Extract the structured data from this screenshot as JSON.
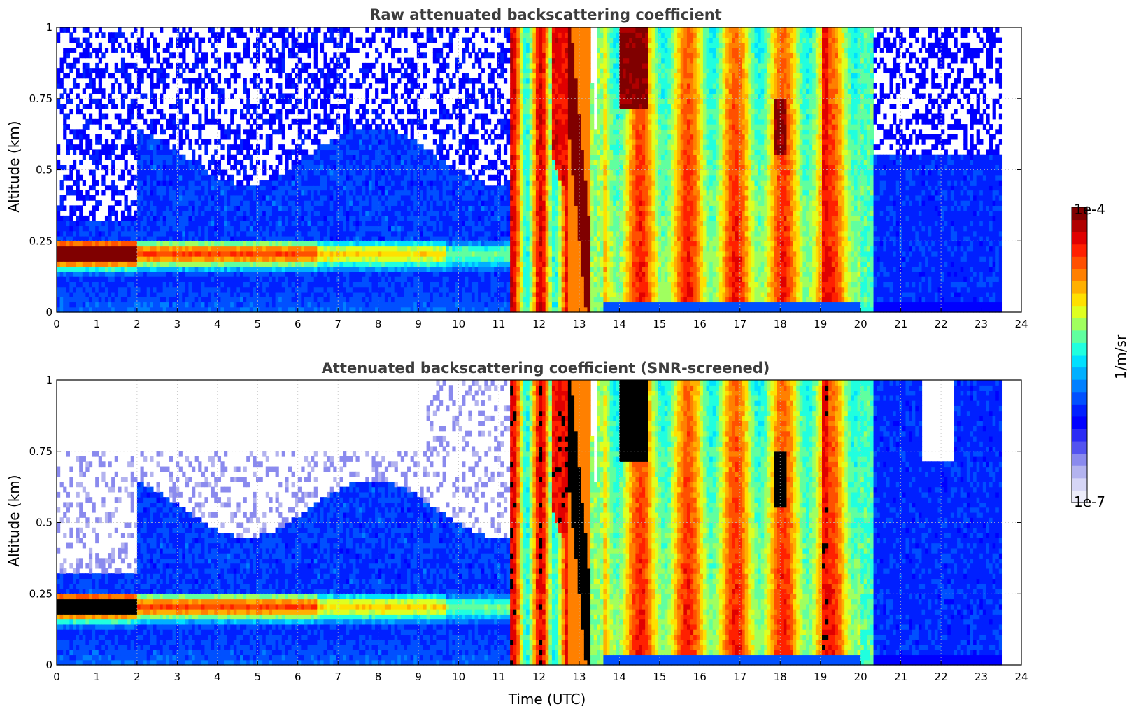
{
  "chart_data": [
    {
      "type": "heatmap",
      "title": "Raw attenuated backscattering coefficient",
      "xlabel": "",
      "ylabel": "Altitude (km)",
      "xlim": [
        0,
        24
      ],
      "ylim": [
        0,
        1
      ],
      "xticks": [
        0,
        1,
        2,
        3,
        4,
        5,
        6,
        7,
        8,
        9,
        10,
        11,
        12,
        13,
        14,
        15,
        16,
        17,
        18,
        19,
        20,
        21,
        22,
        23,
        24
      ],
      "yticks": [
        0,
        0.25,
        0.5,
        0.75,
        1
      ],
      "ytick_labels": [
        "0",
        "0.25",
        "0.5",
        "0.75",
        "1"
      ],
      "grid": true,
      "data_end_time": 23.55,
      "screened": false
    },
    {
      "type": "heatmap",
      "title": "Attenuated backscattering coefficient (SNR-screened)",
      "xlabel": "Time (UTC)",
      "ylabel": "Altitude (km)",
      "xlim": [
        0,
        24
      ],
      "ylim": [
        0,
        1
      ],
      "xticks": [
        0,
        1,
        2,
        3,
        4,
        5,
        6,
        7,
        8,
        9,
        10,
        11,
        12,
        13,
        14,
        15,
        16,
        17,
        18,
        19,
        20,
        21,
        22,
        23,
        24
      ],
      "yticks": [
        0,
        0.25,
        0.5,
        0.75,
        1
      ],
      "ytick_labels": [
        "0",
        "0.25",
        "0.5",
        "0.75",
        "1"
      ],
      "grid": true,
      "data_end_time": 23.55,
      "screened": true
    }
  ],
  "colorbar": {
    "label": "1/m/sr",
    "max_label": "1e-4",
    "min_label": "1e-7",
    "colormap": "jet",
    "scale": "log",
    "colors": [
      "#ececfa",
      "#d6d6f6",
      "#b3b3ef",
      "#8a8aee",
      "#5353f0",
      "#2b2bf5",
      "#0000ff",
      "#0020ff",
      "#0050ff",
      "#0080ff",
      "#00b0ff",
      "#00e0ff",
      "#20ffdf",
      "#60ff9f",
      "#a0ff5f",
      "#dfff20",
      "#ffe000",
      "#ffb000",
      "#ff8000",
      "#ff5000",
      "#ff2000",
      "#e00000",
      "#b00000",
      "#800000"
    ]
  }
}
